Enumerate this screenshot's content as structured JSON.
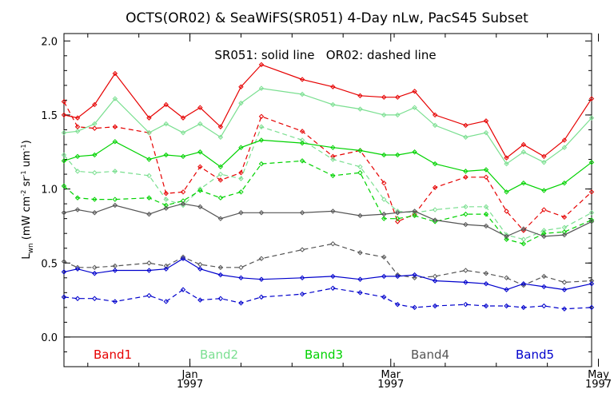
{
  "chart_data": {
    "type": "line",
    "title": "OCTS(OR02) & SeaWiFS(SR051) 4-Day nLw, PacS45 Subset",
    "note": "SR051: solid line   OR02: dashed line",
    "ylabel": "L",
    "ylabel_sub": "wn",
    "ylabel_units": "(mW cm",
    "ylabel_units_full": "(mW cm⁻² sr⁻¹ um⁻¹)",
    "ylim": [
      -0.2,
      2.05
    ],
    "y_ticks": [
      "0.0",
      "0.5",
      "1.0",
      "1.5",
      "2.0"
    ],
    "x_range_days": [
      -37,
      118
    ],
    "x_ticks": [
      {
        "day": 0,
        "label": "Jan",
        "year": "1997"
      },
      {
        "day": 59,
        "label": "Mar",
        "year": "1997"
      },
      {
        "day": 120,
        "label": "May",
        "year": "1997"
      }
    ],
    "zero_line": true,
    "series": [
      {
        "name": "Band1",
        "color": "#e60000",
        "style": "solid",
        "x": [
          -37,
          -33,
          -28,
          -22,
          -12,
          -7,
          -2,
          3,
          9,
          15,
          21,
          33,
          42,
          50,
          57,
          61,
          66,
          72,
          81,
          87,
          93,
          98,
          104,
          110,
          118
        ],
        "y": [
          1.5,
          1.48,
          1.57,
          1.78,
          1.48,
          1.57,
          1.48,
          1.55,
          1.42,
          1.69,
          1.84,
          1.74,
          1.69,
          1.63,
          1.62,
          1.62,
          1.66,
          1.5,
          1.43,
          1.46,
          1.21,
          1.3,
          1.22,
          1.33,
          1.61
        ]
      },
      {
        "name": "Band1",
        "color": "#e60000",
        "style": "dashed",
        "x": [
          -37,
          -33,
          -28,
          -22,
          -12,
          -7,
          -2,
          3,
          9,
          15,
          21,
          33,
          42,
          50,
          57,
          61,
          66,
          72,
          81,
          87,
          93,
          98,
          104,
          110,
          118
        ],
        "y": [
          1.59,
          1.42,
          1.41,
          1.42,
          1.38,
          0.97,
          0.98,
          1.15,
          1.06,
          1.11,
          1.49,
          1.39,
          1.22,
          1.26,
          1.04,
          0.78,
          0.83,
          1.01,
          1.08,
          1.08,
          0.85,
          0.72,
          0.86,
          0.81,
          0.98
        ]
      },
      {
        "name": "Band2",
        "color": "#7adf90",
        "style": "solid",
        "x": [
          -37,
          -33,
          -28,
          -22,
          -12,
          -7,
          -2,
          3,
          9,
          15,
          21,
          33,
          42,
          50,
          57,
          61,
          66,
          72,
          81,
          87,
          93,
          98,
          104,
          110,
          118
        ],
        "y": [
          1.38,
          1.39,
          1.44,
          1.61,
          1.38,
          1.44,
          1.38,
          1.44,
          1.35,
          1.58,
          1.68,
          1.64,
          1.57,
          1.54,
          1.5,
          1.5,
          1.55,
          1.43,
          1.35,
          1.38,
          1.17,
          1.25,
          1.18,
          1.28,
          1.48
        ]
      },
      {
        "name": "Band2",
        "color": "#7adf90",
        "style": "dashed",
        "x": [
          -37,
          -33,
          -28,
          -22,
          -12,
          -7,
          -2,
          3,
          9,
          15,
          21,
          33,
          42,
          50,
          57,
          61,
          66,
          72,
          81,
          87,
          93,
          98,
          104,
          110,
          118
        ],
        "y": [
          1.23,
          1.12,
          1.11,
          1.12,
          1.09,
          0.93,
          0.89,
          1.0,
          1.1,
          1.07,
          1.42,
          1.33,
          1.2,
          1.15,
          0.93,
          0.85,
          0.84,
          0.86,
          0.88,
          0.88,
          0.69,
          0.66,
          0.72,
          0.74,
          0.84
        ]
      },
      {
        "name": "Band3",
        "color": "#00d200",
        "style": "solid",
        "x": [
          -37,
          -33,
          -28,
          -22,
          -12,
          -7,
          -2,
          3,
          9,
          15,
          21,
          33,
          42,
          50,
          57,
          61,
          66,
          72,
          81,
          87,
          93,
          98,
          104,
          110,
          118
        ],
        "y": [
          1.19,
          1.22,
          1.23,
          1.32,
          1.2,
          1.23,
          1.22,
          1.25,
          1.15,
          1.28,
          1.33,
          1.31,
          1.28,
          1.26,
          1.23,
          1.23,
          1.25,
          1.17,
          1.12,
          1.13,
          0.98,
          1.04,
          0.99,
          1.04,
          1.18
        ]
      },
      {
        "name": "Band3",
        "color": "#00d200",
        "style": "dashed",
        "x": [
          -37,
          -33,
          -28,
          -22,
          -12,
          -7,
          -2,
          3,
          9,
          15,
          21,
          33,
          42,
          50,
          57,
          61,
          66,
          72,
          81,
          87,
          93,
          98,
          104,
          110,
          118
        ],
        "y": [
          1.02,
          0.94,
          0.93,
          0.93,
          0.94,
          0.89,
          0.92,
          0.99,
          0.94,
          0.98,
          1.17,
          1.19,
          1.09,
          1.11,
          0.8,
          0.8,
          0.82,
          0.78,
          0.83,
          0.83,
          0.66,
          0.63,
          0.7,
          0.71,
          0.79
        ]
      },
      {
        "name": "Band4",
        "color": "#555555",
        "style": "solid",
        "x": [
          -37,
          -33,
          -28,
          -22,
          -12,
          -7,
          -2,
          3,
          9,
          15,
          21,
          33,
          42,
          50,
          57,
          61,
          66,
          72,
          81,
          87,
          93,
          98,
          104,
          110,
          118
        ],
        "y": [
          0.84,
          0.86,
          0.84,
          0.89,
          0.83,
          0.87,
          0.9,
          0.88,
          0.8,
          0.84,
          0.84,
          0.84,
          0.85,
          0.82,
          0.83,
          0.84,
          0.85,
          0.79,
          0.76,
          0.75,
          0.68,
          0.73,
          0.68,
          0.69,
          0.78
        ]
      },
      {
        "name": "Band4",
        "color": "#555555",
        "style": "dashed",
        "x": [
          -37,
          -33,
          -28,
          -22,
          -12,
          -7,
          -2,
          3,
          9,
          15,
          21,
          33,
          42,
          50,
          57,
          61,
          66,
          72,
          81,
          87,
          93,
          98,
          104,
          110,
          118
        ],
        "y": [
          0.51,
          0.47,
          0.47,
          0.48,
          0.5,
          0.48,
          0.54,
          0.49,
          0.47,
          0.47,
          0.53,
          0.59,
          0.63,
          0.57,
          0.54,
          0.42,
          0.4,
          0.41,
          0.45,
          0.43,
          0.4,
          0.35,
          0.41,
          0.37,
          0.38
        ]
      },
      {
        "name": "Band5",
        "color": "#0000cc",
        "style": "solid",
        "x": [
          -37,
          -33,
          -28,
          -22,
          -12,
          -7,
          -2,
          3,
          9,
          15,
          21,
          33,
          42,
          50,
          57,
          61,
          66,
          72,
          81,
          87,
          93,
          98,
          104,
          110,
          118
        ],
        "y": [
          0.44,
          0.46,
          0.43,
          0.45,
          0.45,
          0.46,
          0.53,
          0.46,
          0.42,
          0.4,
          0.39,
          0.4,
          0.41,
          0.39,
          0.41,
          0.41,
          0.42,
          0.38,
          0.37,
          0.36,
          0.32,
          0.36,
          0.34,
          0.32,
          0.36
        ]
      },
      {
        "name": "Band5",
        "color": "#0000cc",
        "style": "dashed",
        "x": [
          -37,
          -33,
          -28,
          -22,
          -12,
          -7,
          -2,
          3,
          9,
          15,
          21,
          33,
          42,
          50,
          57,
          61,
          66,
          72,
          81,
          87,
          93,
          98,
          104,
          110,
          118
        ],
        "y": [
          0.27,
          0.26,
          0.26,
          0.24,
          0.28,
          0.24,
          0.32,
          0.25,
          0.26,
          0.23,
          0.27,
          0.29,
          0.33,
          0.3,
          0.27,
          0.22,
          0.2,
          0.21,
          0.22,
          0.21,
          0.21,
          0.2,
          0.21,
          0.19,
          0.2
        ]
      }
    ],
    "legend": [
      {
        "label": "Band1",
        "color": "#e60000"
      },
      {
        "label": "Band2",
        "color": "#7adf90"
      },
      {
        "label": "Band3",
        "color": "#00d200"
      },
      {
        "label": "Band4",
        "color": "#555555"
      },
      {
        "label": "Band5",
        "color": "#0000cc"
      }
    ]
  }
}
